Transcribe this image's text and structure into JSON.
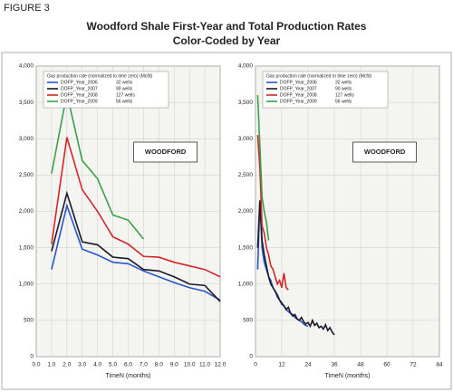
{
  "figure_label": "FIGURE 3",
  "title": "Woodford Shale First-Year and Total Production Rates",
  "subtitle": "Color-Coded by Year",
  "chart_data": [
    {
      "type": "line",
      "xlabel": "TimeN (months)",
      "annotation": "WOODFORD",
      "legend_title": "Gas production rate (normalized to time zero) (Mcfd)",
      "grid": true,
      "xlim": [
        0,
        12
      ],
      "xticks": [
        {
          "value": 0,
          "label": "0.0"
        },
        {
          "value": 1,
          "label": "1.0"
        },
        {
          "value": 2,
          "label": "2.0"
        },
        {
          "value": 3,
          "label": "3.0"
        },
        {
          "value": 4,
          "label": "4.0"
        },
        {
          "value": 5,
          "label": "5.0"
        },
        {
          "value": 6,
          "label": "6.0"
        },
        {
          "value": 7,
          "label": "7.0"
        },
        {
          "value": 8,
          "label": "8.0"
        },
        {
          "value": 9,
          "label": "9.0"
        },
        {
          "value": 10,
          "label": "10.0"
        },
        {
          "value": 11,
          "label": "11.0"
        },
        {
          "value": 12,
          "label": "12.0"
        }
      ],
      "ylim": [
        0,
        4000
      ],
      "yticks": [
        0,
        500,
        {
          "value": 1000,
          "label": "1,000"
        },
        {
          "value": 1500,
          "label": "1,500"
        },
        {
          "value": 2000,
          "label": "2,000"
        },
        {
          "value": 2500,
          "label": "2,500"
        },
        {
          "value": 3000,
          "label": "3,000"
        },
        {
          "value": 3500,
          "label": "3,500"
        },
        {
          "value": 4000,
          "label": "4,000"
        }
      ],
      "series": [
        {
          "name": "DOFP_Year_2006",
          "wells": "32 wells",
          "color": "#2a55c8",
          "x": [
            1,
            2,
            3,
            4,
            5,
            6,
            7,
            8,
            9,
            10,
            11,
            12
          ],
          "values": [
            1200,
            2080,
            1480,
            1400,
            1300,
            1280,
            1180,
            1100,
            1020,
            950,
            900,
            780
          ]
        },
        {
          "name": "DOFP_Year_2007",
          "wells": "90 wells",
          "color": "#1a1a2a",
          "x": [
            1,
            2,
            3,
            4,
            5,
            6,
            7,
            8,
            9,
            10,
            11,
            12
          ],
          "values": [
            1450,
            2250,
            1580,
            1540,
            1370,
            1350,
            1200,
            1180,
            1100,
            1000,
            980,
            760
          ]
        },
        {
          "name": "DOFP_Year_2008",
          "wells": "127 wells",
          "color": "#d0282a",
          "x": [
            1,
            2,
            3,
            4,
            5,
            6,
            7,
            8,
            9,
            10,
            11,
            12
          ],
          "values": [
            1550,
            3020,
            2300,
            2000,
            1650,
            1550,
            1380,
            1370,
            1300,
            1250,
            1200,
            1100
          ]
        },
        {
          "name": "DOFP_Year_2009",
          "wells": "56 wells",
          "color": "#3aa04a",
          "x": [
            1,
            2,
            3,
            4,
            5,
            6,
            7
          ],
          "values": [
            2520,
            3620,
            2700,
            2450,
            1950,
            1880,
            1620
          ]
        }
      ]
    },
    {
      "type": "line",
      "xlabel": "TimeN (months)",
      "annotation": "WOODFORD",
      "legend_title": "Gas production rate (normalized to time zero) (Mcfd)",
      "grid": true,
      "xlim": [
        0,
        84
      ],
      "xticks": [
        0,
        12,
        24,
        36,
        48,
        60,
        72,
        84
      ],
      "ylim": [
        0,
        4000
      ],
      "yticks": [
        0,
        500,
        {
          "value": 1000,
          "label": "1,000"
        },
        {
          "value": 1500,
          "label": "1,500"
        },
        {
          "value": 2000,
          "label": "2,000"
        },
        {
          "value": 2500,
          "label": "2,500"
        },
        {
          "value": 3000,
          "label": "3,000"
        },
        {
          "value": 3500,
          "label": "3,500"
        },
        {
          "value": 4000,
          "label": "4,000"
        }
      ],
      "series": [
        {
          "name": "DOFP_Year_2006",
          "wells": "32 wells",
          "color": "#2a55c8",
          "x": [
            1,
            2,
            3,
            4,
            5,
            6,
            7,
            8,
            9,
            10,
            11,
            12,
            13,
            14,
            15,
            16,
            17,
            18,
            19,
            20,
            21,
            22,
            23,
            24
          ],
          "values": [
            1200,
            2150,
            1500,
            1300,
            1200,
            1100,
            1050,
            950,
            900,
            820,
            780,
            720,
            700,
            650,
            620,
            600,
            580,
            540,
            520,
            500,
            480,
            450,
            430,
            420
          ]
        },
        {
          "name": "DOFP_Year_2007",
          "wells": "90 wells",
          "color": "#1a1a2a",
          "x": [
            1,
            2,
            3,
            4,
            5,
            6,
            7,
            8,
            9,
            10,
            11,
            12,
            13,
            14,
            15,
            16,
            17,
            18,
            19,
            20,
            21,
            22,
            23,
            24,
            25,
            26,
            27,
            28,
            29,
            30,
            31,
            32,
            33,
            34,
            35,
            36
          ],
          "values": [
            1500,
            2150,
            1600,
            1400,
            1250,
            1100,
            1000,
            950,
            900,
            850,
            780,
            740,
            700,
            650,
            680,
            600,
            560,
            580,
            520,
            500,
            540,
            480,
            450,
            470,
            420,
            500,
            430,
            460,
            400,
            420,
            380,
            440,
            360,
            400,
            340,
            300
          ]
        },
        {
          "name": "DOFP_Year_2008",
          "wells": "127 wells",
          "color": "#d0282a",
          "x": [
            1,
            2,
            3,
            4,
            5,
            6,
            7,
            8,
            9,
            10,
            11,
            12,
            13,
            14,
            15
          ],
          "values": [
            3050,
            2600,
            1800,
            1700,
            1500,
            1400,
            1250,
            1200,
            1100,
            1000,
            1050,
            950,
            1150,
            950,
            920
          ]
        },
        {
          "name": "DOFP_Year_2009",
          "wells": "56 wells",
          "color": "#3aa04a",
          "x": [
            1,
            2,
            3,
            4,
            5,
            6
          ],
          "values": [
            3600,
            2900,
            2200,
            2000,
            1850,
            1600
          ]
        }
      ]
    }
  ]
}
